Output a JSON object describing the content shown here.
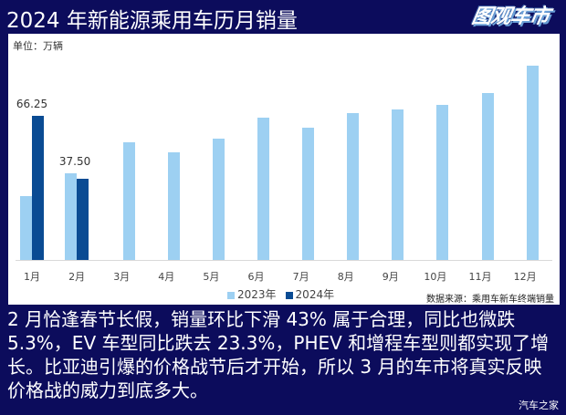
{
  "header": {
    "title": "2024 年新能源乘用车历月销量",
    "logo_text": "图观车市"
  },
  "chart_data": {
    "type": "bar",
    "title": "2024 年新能源乘用车历月销量",
    "unit_label": "单位：万辆",
    "xlabel": "",
    "ylabel": "万辆",
    "categories": [
      "1月",
      "2月",
      "3月",
      "4月",
      "5月",
      "6月",
      "7月",
      "8月",
      "9月",
      "10月",
      "11月",
      "12月"
    ],
    "series": [
      {
        "name": "2023年",
        "color": "#9dd0f2",
        "values": [
          29.4,
          39.8,
          54.1,
          49.5,
          55.9,
          65.3,
          60.8,
          67.6,
          69.2,
          71.3,
          76.9,
          89.2
        ]
      },
      {
        "name": "2024年",
        "color": "#0a4b93",
        "values": [
          66.25,
          37.5,
          null,
          null,
          null,
          null,
          null,
          null,
          null,
          null,
          null,
          null
        ]
      }
    ],
    "data_labels": [
      {
        "category": "1月",
        "series": "2024年",
        "text": "66.25"
      },
      {
        "category": "2月",
        "series": "2024年",
        "text": "37.50"
      }
    ],
    "ylim": [
      0,
      95
    ],
    "grid": false,
    "legend_position": "bottom",
    "source": "数据来源：乘用车新车终端销量"
  },
  "caption": "2 月恰逢春节长假，销量环比下滑 43% 属于合理，同比也微跌 5.3%，EV 车型同比跌去 23.3%，PHEV 和增程车型则都实现了增长。比亚迪引爆的价格战节后才开始，所以 3 月的车市将真实反映价格战的威力到底多大。",
  "watermark": "汽车之家"
}
